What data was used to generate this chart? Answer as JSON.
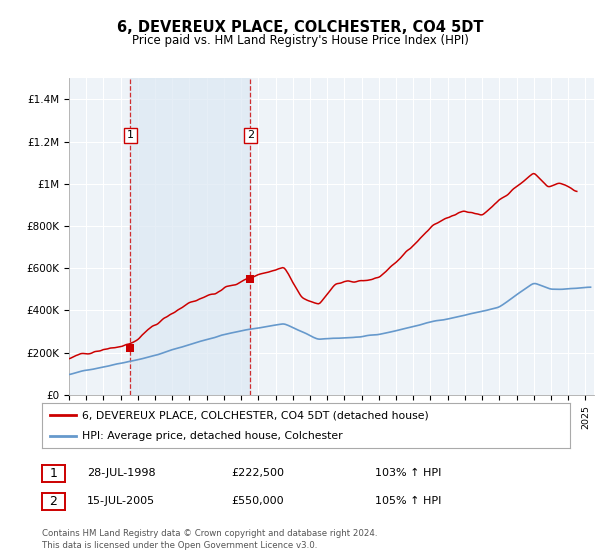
{
  "title": "6, DEVEREUX PLACE, COLCHESTER, CO4 5DT",
  "subtitle": "Price paid vs. HM Land Registry's House Price Index (HPI)",
  "legend_line1": "6, DEVEREUX PLACE, COLCHESTER, CO4 5DT (detached house)",
  "legend_line2": "HPI: Average price, detached house, Colchester",
  "footer": "Contains HM Land Registry data © Crown copyright and database right 2024.\nThis data is licensed under the Open Government Licence v3.0.",
  "transaction1_date": "28-JUL-1998",
  "transaction1_price": "£222,500",
  "transaction1_hpi": "103% ↑ HPI",
  "transaction2_date": "15-JUL-2005",
  "transaction2_price": "£550,000",
  "transaction2_hpi": "105% ↑ HPI",
  "transaction1_year": 1998.57,
  "transaction1_value": 222500,
  "transaction2_year": 2005.54,
  "transaction2_value": 550000,
  "hpi_color": "#6699cc",
  "price_color": "#cc0000",
  "marker_color": "#cc0000",
  "ylim_min": 0,
  "ylim_max": 1500000,
  "xlim_min": 1995.0,
  "xlim_max": 2025.5,
  "background_color": "#ffffff",
  "plot_bg_color": "#eef3f8",
  "grid_color": "#d8d8d8",
  "vline_color": "#cc0000",
  "vline_alpha": 0.8,
  "span_color": "#dce8f3",
  "span_alpha": 0.7
}
